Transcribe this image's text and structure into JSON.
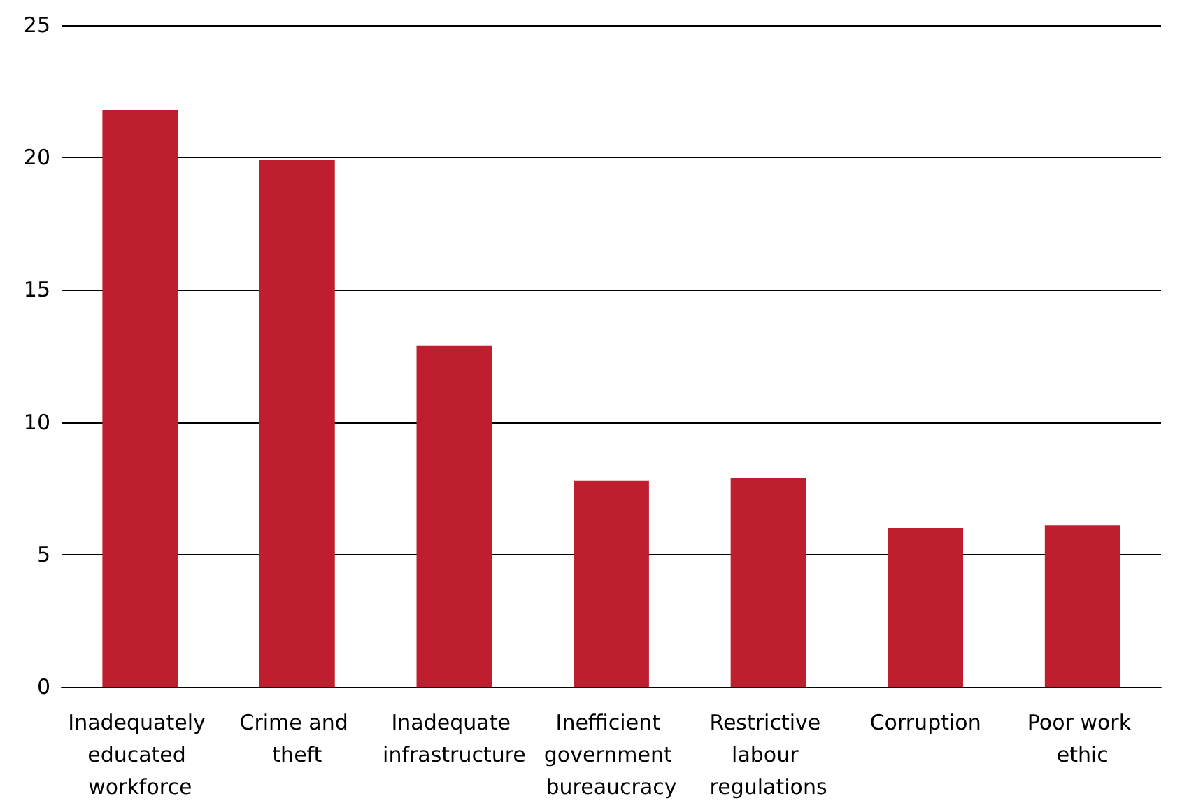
{
  "chart_data": {
    "type": "bar",
    "categories": [
      "Inadequately educated workforce",
      "Crime and theft",
      "Inadequate infrastructure",
      "Inefficient government bureaucracy",
      "Restrictive labour regulations",
      "Corruption",
      "Poor work ethic"
    ],
    "values": [
      21.8,
      19.9,
      12.9,
      7.8,
      7.9,
      6.0,
      6.1
    ],
    "color": "#be1e2d",
    "ylim": [
      0,
      25
    ],
    "yticks": [
      0,
      5,
      10,
      15,
      20,
      25
    ],
    "grid": "y"
  }
}
